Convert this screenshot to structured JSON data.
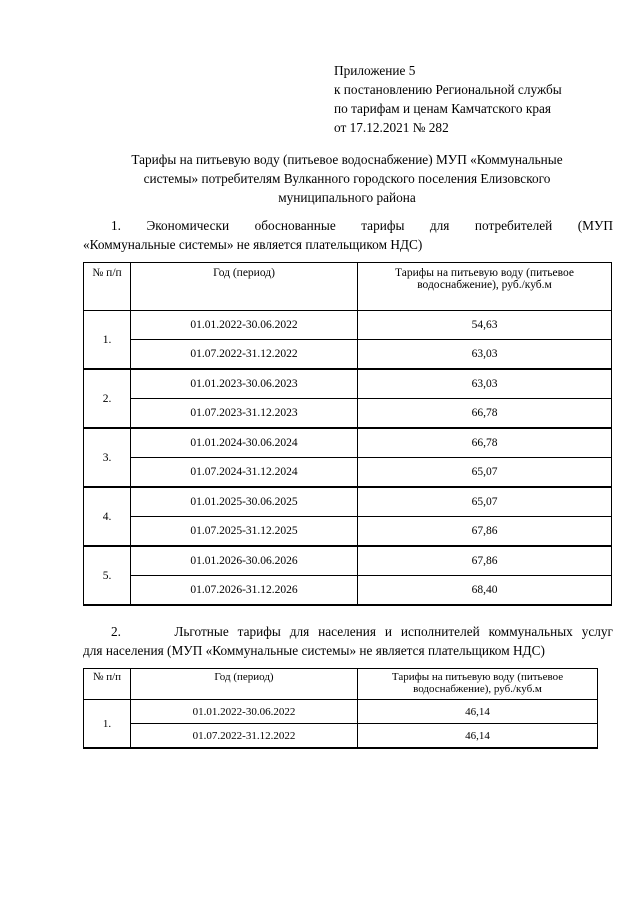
{
  "appendix": [
    "Приложение 5",
    "к постановлению Региональной службы",
    "по тарифам и ценам Камчатского края",
    "от 17.12.2021 № 282"
  ],
  "title": [
    "Тарифы на питьевую воду (питьевое водоснабжение) МУП «Коммунальные",
    "системы» потребителям Вулканного городского поселения Елизовского",
    "муниципального района"
  ],
  "section1": {
    "lines": [
      "1. Экономически обоснованные тарифы для потребителей (МУП",
      "«Коммунальные системы» не является плательщиком НДС)"
    ],
    "headers": [
      "№ п/п",
      "Год (период)",
      "Тарифы на питьевую воду (питьевое водоснабжение), руб./куб.м"
    ],
    "groups": [
      {
        "num": "1.",
        "rows": [
          [
            "01.01.2022-30.06.2022",
            "54,63"
          ],
          [
            "01.07.2022-31.12.2022",
            "63,03"
          ]
        ]
      },
      {
        "num": "2.",
        "rows": [
          [
            "01.01.2023-30.06.2023",
            "63,03"
          ],
          [
            "01.07.2023-31.12.2023",
            "66,78"
          ]
        ]
      },
      {
        "num": "3.",
        "rows": [
          [
            "01.01.2024-30.06.2024",
            "66,78"
          ],
          [
            "01.07.2024-31.12.2024",
            "65,07"
          ]
        ]
      },
      {
        "num": "4.",
        "rows": [
          [
            "01.01.2025-30.06.2025",
            "65,07"
          ],
          [
            "01.07.2025-31.12.2025",
            "67,86"
          ]
        ]
      },
      {
        "num": "5.",
        "rows": [
          [
            "01.01.2026-30.06.2026",
            "67,86"
          ],
          [
            "01.07.2026-31.12.2026",
            "68,40"
          ]
        ]
      }
    ]
  },
  "section2": {
    "lines": [
      "2.      Льготные тарифы для населения и исполнителей коммунальных услуг",
      "для населения (МУП «Коммунальные системы» не является плательщиком НДС)"
    ],
    "headers": [
      "№ п/п",
      "Год (период)",
      "Тарифы на питьевую воду (питьевое водоснабжение), руб./куб.м"
    ],
    "groups": [
      {
        "num": "1.",
        "rows": [
          [
            "01.01.2022-30.06.2022",
            "46,14"
          ],
          [
            "01.07.2022-31.12.2022",
            "46,14"
          ]
        ]
      }
    ]
  }
}
